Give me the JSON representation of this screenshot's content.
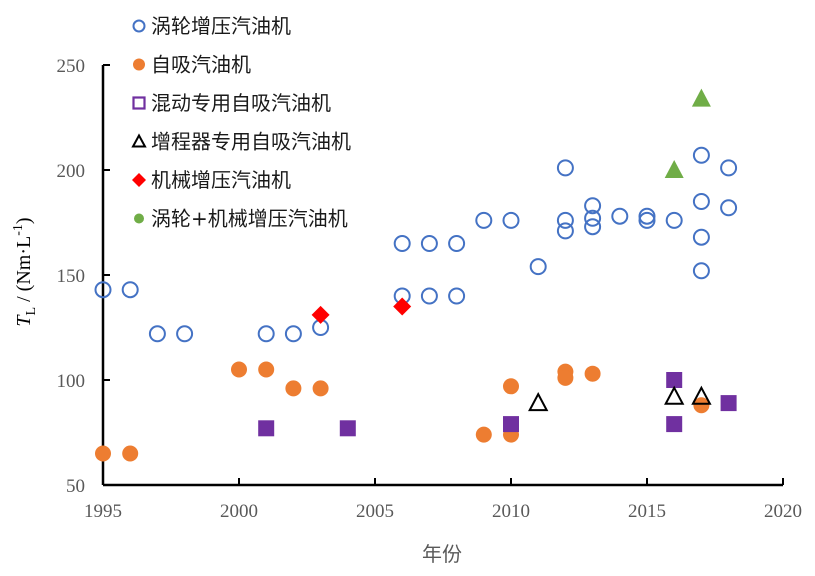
{
  "chart_data": {
    "type": "scatter",
    "title": "",
    "xlabel": "年份",
    "ylabel": {
      "symbol": "T",
      "subscript": "L",
      "unit_prefix": " / (Nm·L",
      "unit_exp": "-1",
      "unit_suffix": ")"
    },
    "xlim": [
      1995,
      2020
    ],
    "ylim": [
      50,
      250
    ],
    "xticks": [
      "1995",
      "2000",
      "2005",
      "2010",
      "2015",
      "2020"
    ],
    "yticks": [
      "50",
      "100",
      "150",
      "200",
      "250"
    ],
    "grid": false,
    "legend_position": "top-left",
    "series": [
      {
        "name": "涡轮增压汽油机",
        "marker": "open-circle",
        "color": "#4472C4",
        "points": [
          [
            1995,
            143
          ],
          [
            1996,
            143
          ],
          [
            1997,
            122
          ],
          [
            1998,
            122
          ],
          [
            2001,
            122
          ],
          [
            2002,
            122
          ],
          [
            2003,
            125
          ],
          [
            2006,
            165
          ],
          [
            2006,
            140
          ],
          [
            2007,
            165
          ],
          [
            2007,
            140
          ],
          [
            2008,
            165
          ],
          [
            2008,
            140
          ],
          [
            2009,
            176
          ],
          [
            2010,
            176
          ],
          [
            2011,
            154
          ],
          [
            2012,
            201
          ],
          [
            2012,
            176
          ],
          [
            2012,
            171
          ],
          [
            2013,
            183
          ],
          [
            2013,
            177
          ],
          [
            2013,
            173
          ],
          [
            2014,
            178
          ],
          [
            2015,
            178
          ],
          [
            2015,
            176
          ],
          [
            2016,
            176
          ],
          [
            2017,
            207
          ],
          [
            2017,
            185
          ],
          [
            2017,
            168
          ],
          [
            2017,
            152
          ],
          [
            2018,
            201
          ],
          [
            2018,
            182
          ]
        ]
      },
      {
        "name": "自吸汽油机",
        "marker": "filled-circle",
        "color": "#ED7D31",
        "points": [
          [
            1995,
            65
          ],
          [
            1996,
            65
          ],
          [
            2000,
            105
          ],
          [
            2001,
            105
          ],
          [
            2002,
            96
          ],
          [
            2003,
            96
          ],
          [
            2009,
            74
          ],
          [
            2010,
            74
          ],
          [
            2010,
            97
          ],
          [
            2012,
            104
          ],
          [
            2012,
            101
          ],
          [
            2013,
            103
          ],
          [
            2017,
            88
          ]
        ]
      },
      {
        "name": "混动专用自吸汽油机",
        "marker": "square",
        "color": "#7030A0",
        "points": [
          [
            2001,
            77
          ],
          [
            2004,
            77
          ],
          [
            2010,
            79
          ],
          [
            2016,
            100
          ],
          [
            2016,
            79
          ],
          [
            2018,
            89
          ]
        ]
      },
      {
        "name": "增程器专用自吸汽油机",
        "marker": "open-triangle",
        "color": "#000000",
        "points": [
          [
            2011,
            89
          ],
          [
            2016,
            92
          ],
          [
            2017,
            92
          ]
        ]
      },
      {
        "name": "机械增压汽油机",
        "marker": "diamond",
        "color": "#FF0000",
        "points": [
          [
            2003,
            131
          ],
          [
            2006,
            135
          ]
        ]
      },
      {
        "name": "涡轮+机械增压汽油机",
        "marker": "filled-triangle",
        "color": "#70AD47",
        "points": [
          [
            2016,
            200
          ],
          [
            2017,
            234
          ]
        ]
      }
    ]
  }
}
